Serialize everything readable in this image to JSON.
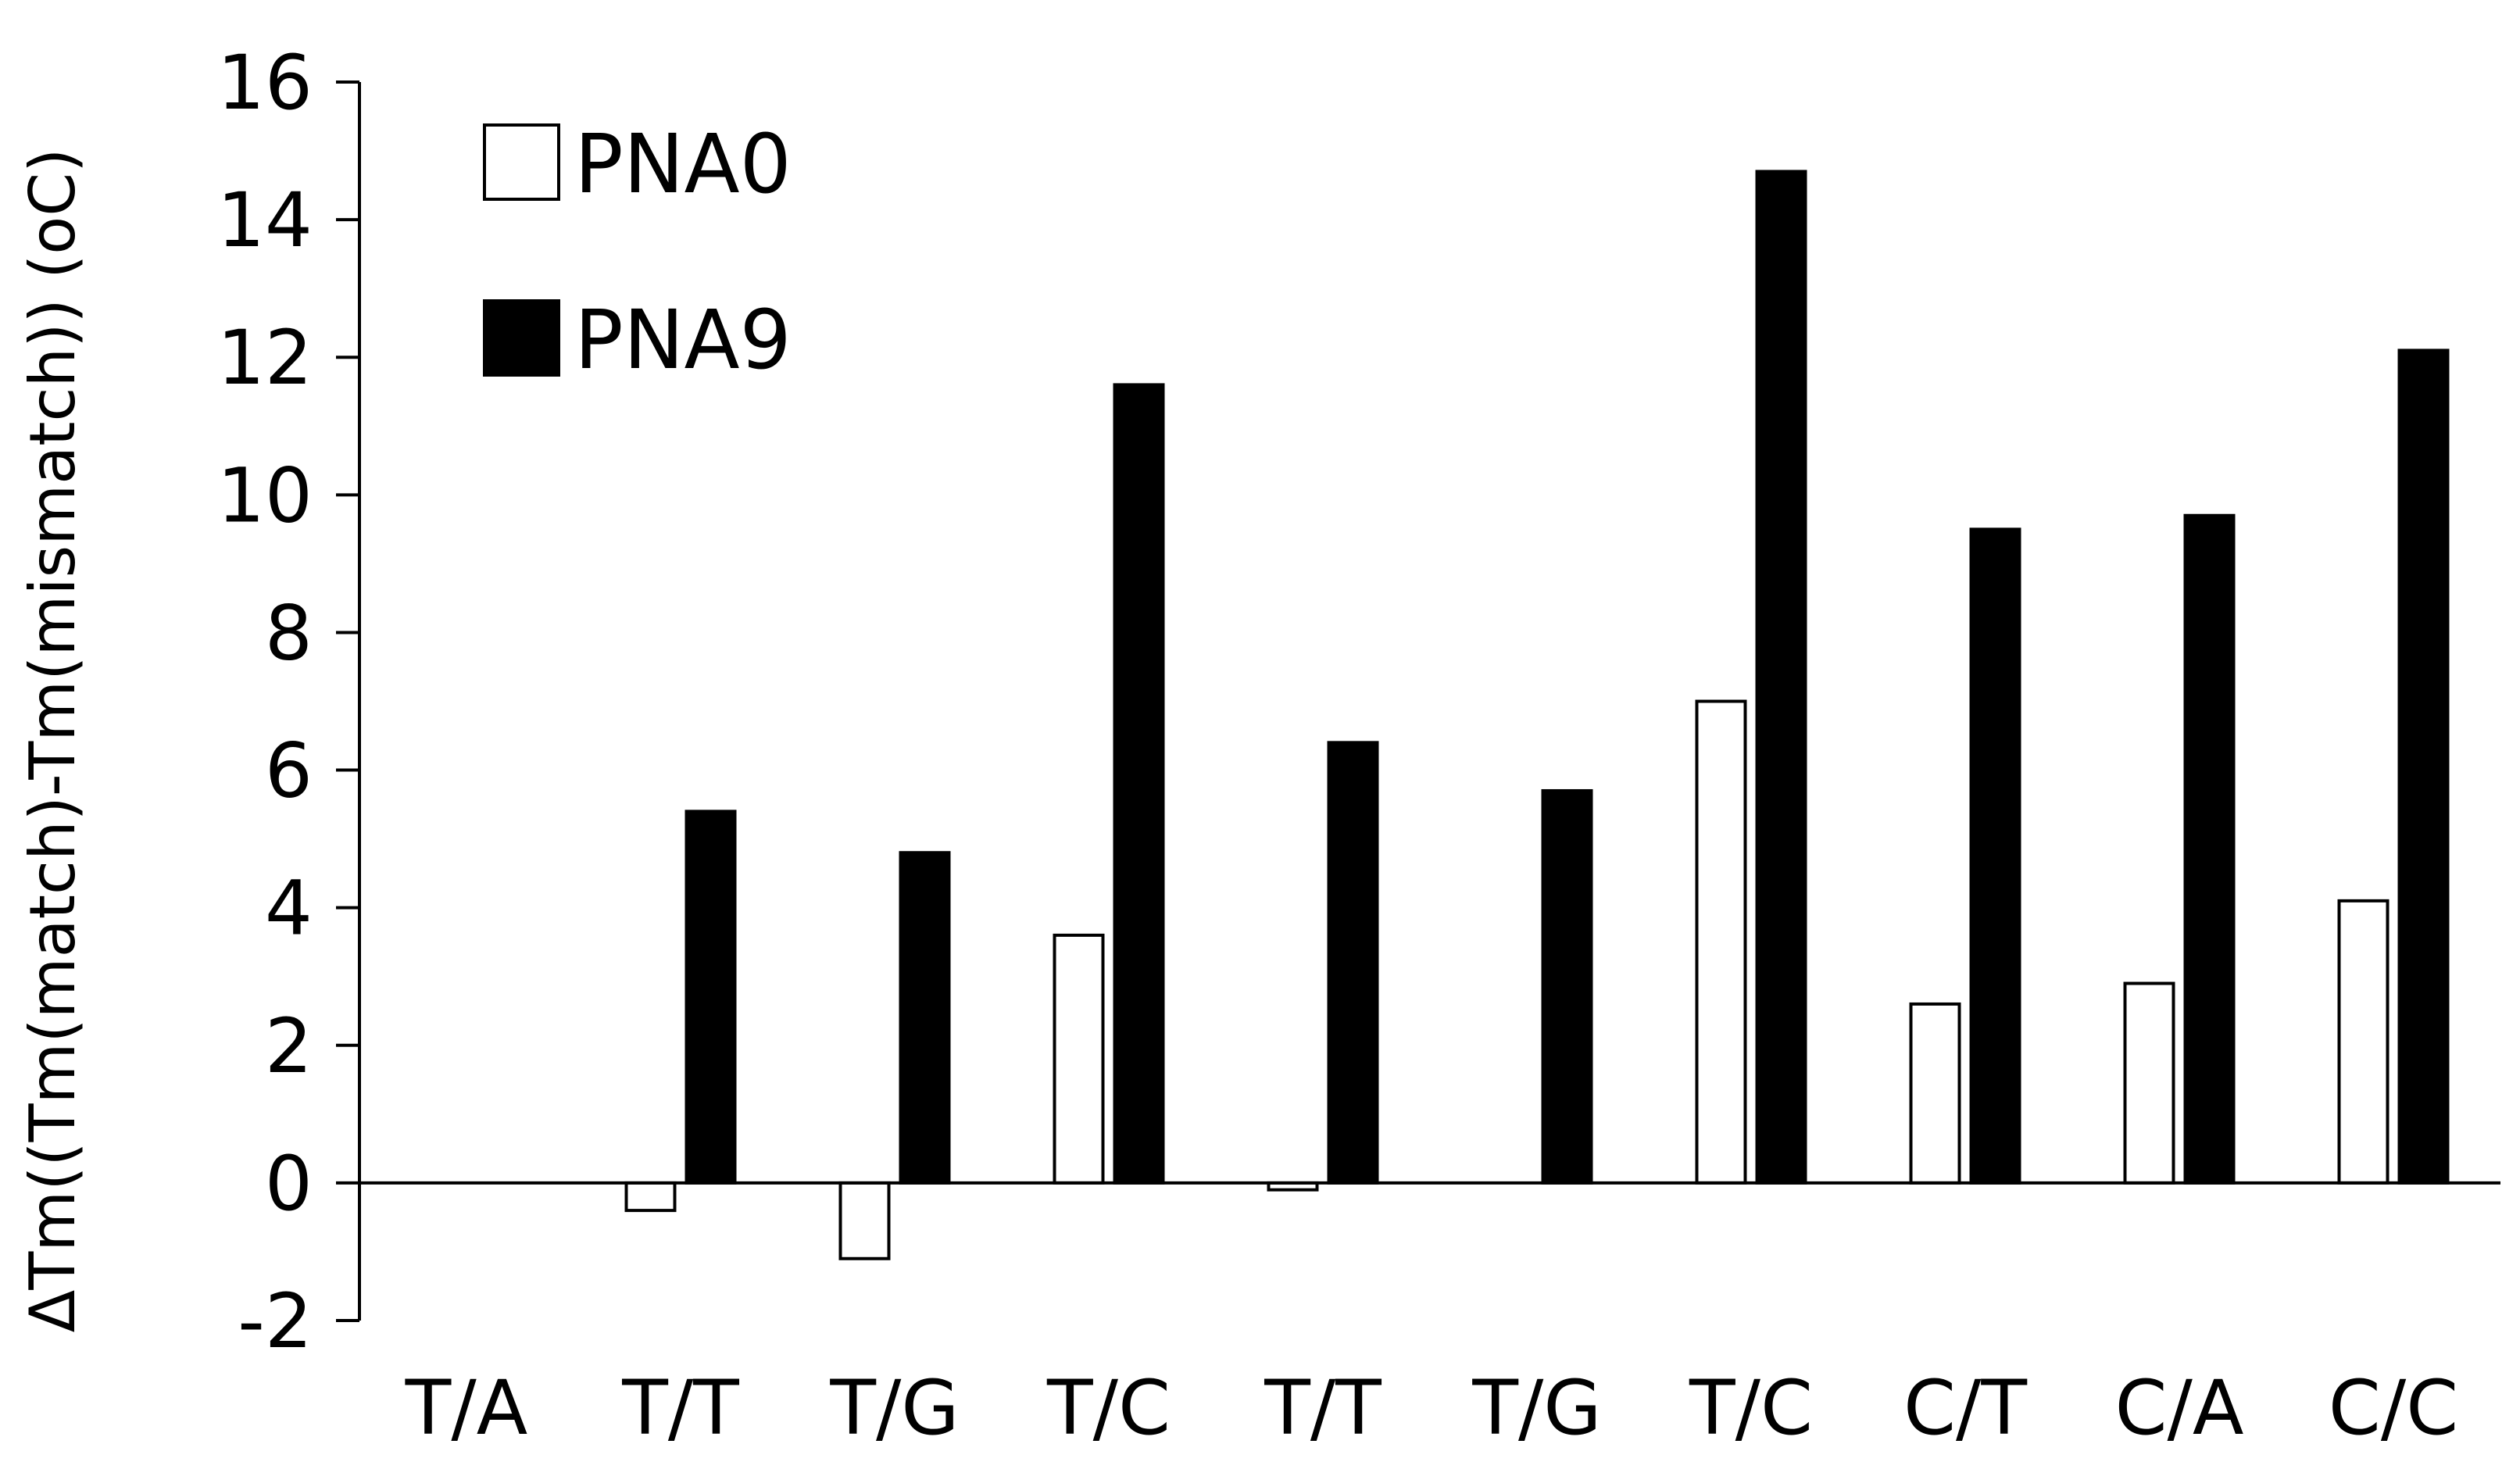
{
  "chart_data": {
    "type": "bar",
    "title": "",
    "xlabel": "",
    "ylabel": "ΔTm((Tm(match)-Tm(mismatch)) (oC)",
    "ylim": [
      -2,
      16
    ],
    "yticks": [
      "-2",
      "0",
      "2",
      "4",
      "6",
      "8",
      "10",
      "12",
      "14",
      "16"
    ],
    "categories": [
      "T/A",
      "T/T",
      "T/G",
      "T/C",
      "T/T",
      "T/G",
      "T/C",
      "C/T",
      "C/A",
      "C/C"
    ],
    "series": [
      {
        "name": "PNA0",
        "color": "#ffffff",
        "values": [
          0,
          -0.4,
          -1.1,
          3.6,
          -0.1,
          0,
          7.0,
          2.6,
          2.9,
          4.1
        ]
      },
      {
        "name": "PNA9",
        "color": "#000000",
        "values": [
          0,
          5.4,
          4.8,
          11.6,
          6.4,
          5.7,
          14.7,
          9.5,
          9.7,
          12.1
        ]
      }
    ],
    "legend_position": "top-left",
    "grid": false
  }
}
